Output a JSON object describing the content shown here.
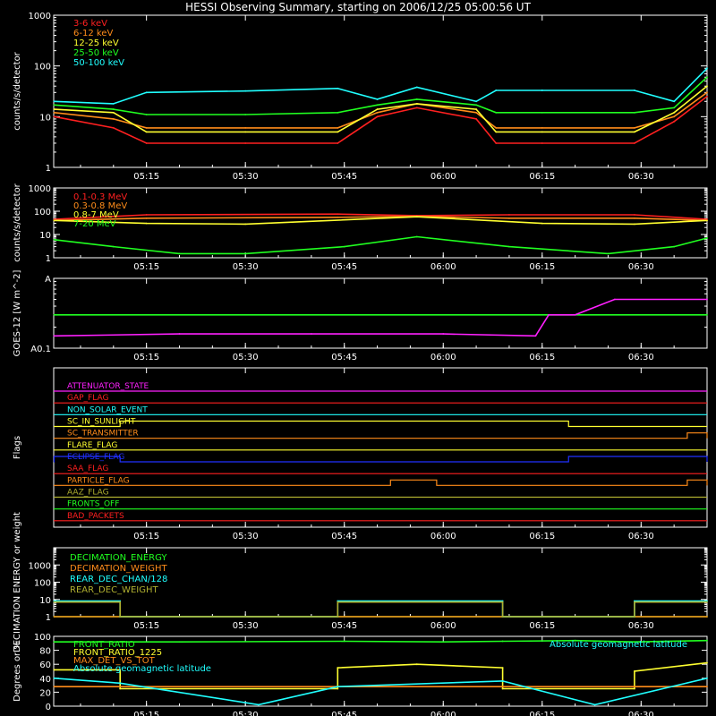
{
  "title": "HESSI Observing Summary, starting on 2006/12/25 05:00:56 UT",
  "colors": {
    "background": "#000000",
    "axis": "#ffffff",
    "red": "#ff2020",
    "orange": "#ff8c1a",
    "yellow": "#ffff30",
    "green": "#20ff20",
    "cyan": "#20ffff",
    "magenta": "#ff20ff",
    "blue": "#2030ff",
    "olive": "#b0b030"
  },
  "x_axis": {
    "start_utc": "05:00:56",
    "end_utc": "06:40",
    "tick_labels": [
      "05:15",
      "05:30",
      "05:45",
      "06:00",
      "06:15",
      "06:30"
    ],
    "tick_values": [
      "05:15",
      "05:30",
      "05:45",
      "06:00",
      "06:15",
      "06:30"
    ]
  },
  "chart_data": [
    {
      "type": "line",
      "ylabel": "counts/s/detector",
      "yscale": "log",
      "ylim": [
        1,
        1000
      ],
      "ytick_labels": [
        "1",
        "10",
        "100",
        "1000"
      ],
      "legend_placement": "top-left",
      "series": [
        {
          "name": "3-6 keV",
          "color": "red",
          "x": [
            "05:01",
            "05:10",
            "05:15",
            "05:30",
            "05:44",
            "05:50",
            "05:56",
            "06:05",
            "06:08",
            "06:15",
            "06:29",
            "06:35",
            "06:40"
          ],
          "y": [
            10,
            6,
            3,
            3,
            3,
            10,
            15,
            9,
            3,
            3,
            3,
            8,
            25
          ]
        },
        {
          "name": "6-12 keV",
          "color": "orange",
          "x": [
            "05:01",
            "05:10",
            "05:15",
            "05:30",
            "05:44",
            "05:50",
            "05:56",
            "06:05",
            "06:08",
            "06:15",
            "06:29",
            "06:35",
            "06:40"
          ],
          "y": [
            12,
            9,
            6,
            6,
            6,
            12,
            18,
            12,
            6,
            6,
            6,
            10,
            30
          ]
        },
        {
          "name": "12-25 keV",
          "color": "yellow",
          "x": [
            "05:01",
            "05:10",
            "05:15",
            "05:30",
            "05:44",
            "05:50",
            "05:56",
            "06:05",
            "06:08",
            "06:15",
            "06:29",
            "06:35",
            "06:40"
          ],
          "y": [
            14,
            12,
            5,
            5,
            5,
            14,
            18,
            14,
            5,
            5,
            5,
            12,
            40
          ]
        },
        {
          "name": "25-50 keV",
          "color": "green",
          "x": [
            "05:01",
            "05:10",
            "05:15",
            "05:30",
            "05:44",
            "05:50",
            "05:56",
            "06:05",
            "06:08",
            "06:15",
            "06:29",
            "06:35",
            "06:40"
          ],
          "y": [
            17,
            14,
            11,
            11,
            12,
            17,
            22,
            17,
            12,
            12,
            12,
            15,
            60
          ]
        },
        {
          "name": "50-100 keV",
          "color": "cyan",
          "x": [
            "05:01",
            "05:10",
            "05:15",
            "05:30",
            "05:44",
            "05:50",
            "05:56",
            "06:05",
            "06:08",
            "06:15",
            "06:29",
            "06:35",
            "06:40"
          ],
          "y": [
            20,
            18,
            30,
            32,
            36,
            22,
            38,
            20,
            33,
            33,
            33,
            20,
            90
          ]
        }
      ]
    },
    {
      "type": "line",
      "ylabel": "counts/s/detector",
      "yscale": "log",
      "ylim": [
        1,
        1000
      ],
      "ytick_labels": [
        "1",
        "10",
        "100",
        "1000"
      ],
      "legend_placement": "top-left",
      "series": [
        {
          "name": "0.1-0.3 MeV",
          "color": "red",
          "x": [
            "05:01",
            "05:15",
            "05:44",
            "05:56",
            "06:10",
            "06:29",
            "06:40"
          ],
          "y": [
            45,
            70,
            75,
            65,
            70,
            70,
            45
          ]
        },
        {
          "name": "0.3-0.8 MeV",
          "color": "orange",
          "x": [
            "05:01",
            "05:15",
            "05:44",
            "05:56",
            "06:10",
            "06:29",
            "06:40"
          ],
          "y": [
            40,
            50,
            55,
            60,
            50,
            50,
            40
          ]
        },
        {
          "name": "0.8-7 MeV",
          "color": "yellow",
          "x": [
            "05:01",
            "05:15",
            "05:30",
            "05:56",
            "06:15",
            "06:29",
            "06:40"
          ],
          "y": [
            40,
            30,
            28,
            58,
            30,
            28,
            40
          ]
        },
        {
          "name": "7-20 MeV",
          "color": "green",
          "x": [
            "05:01",
            "05:10",
            "05:20",
            "05:30",
            "05:45",
            "05:56",
            "06:10",
            "06:25",
            "06:35",
            "06:40"
          ],
          "y": [
            6,
            3,
            1.5,
            1.5,
            3,
            8,
            3,
            1.5,
            3,
            7
          ]
        }
      ]
    },
    {
      "type": "line",
      "ylabel": "GOES-12 [W m^-2]",
      "yscale": "log",
      "ylim": [
        1e-09,
        1e-08
      ],
      "ytick_labels": [
        "A0.1",
        "A"
      ],
      "series": [
        {
          "color": "green",
          "x": [
            "05:01",
            "06:40"
          ],
          "y": [
            3e-09,
            3e-09
          ]
        },
        {
          "color": "magenta",
          "x": [
            "05:01",
            "05:20",
            "05:40",
            "06:00",
            "06:14",
            "06:16",
            "06:20",
            "06:26",
            "06:40"
          ],
          "y": [
            1.5e-09,
            1.6e-09,
            1.6e-09,
            1.6e-09,
            1.5e-09,
            3e-09,
            3e-09,
            5e-09,
            5e-09
          ]
        }
      ]
    },
    {
      "type": "line",
      "ylabel": "Flags",
      "flags": [
        {
          "name": "ATTENUATOR_STATE",
          "color": "magenta",
          "intervals": []
        },
        {
          "name": "GAP_FLAG",
          "color": "red",
          "intervals": []
        },
        {
          "name": "NON_SOLAR_EVENT",
          "color": "cyan",
          "intervals": []
        },
        {
          "name": "SC_IN_SUNLIGHT",
          "color": "yellow",
          "intervals": [
            [
              "05:11",
              "06:19"
            ]
          ]
        },
        {
          "name": "SC_TRANSMITTER",
          "color": "orange",
          "intervals": [
            [
              "06:37",
              "06:40"
            ]
          ]
        },
        {
          "name": "FLARE_FLAG",
          "color": "yellow",
          "intervals": []
        },
        {
          "name": "ECLIPSE_FLAG",
          "color": "blue",
          "intervals": [
            [
              "05:01",
              "05:11"
            ],
            [
              "06:19",
              "06:40"
            ]
          ]
        },
        {
          "name": "SAA_FLAG",
          "color": "red",
          "intervals": []
        },
        {
          "name": "PARTICLE_FLAG",
          "color": "orange",
          "intervals": [
            [
              "05:52",
              "05:59"
            ],
            [
              "06:37",
              "06:40"
            ]
          ]
        },
        {
          "name": "AAZ_FLAG",
          "color": "olive",
          "intervals": []
        },
        {
          "name": "FRONTS_OFF",
          "color": "green",
          "intervals": []
        },
        {
          "name": "BAD_PACKETS",
          "color": "red",
          "intervals": []
        }
      ]
    },
    {
      "type": "line",
      "ylabel": "DECIMATION ENERGY or weight",
      "yscale": "log",
      "ylim": [
        1,
        10000
      ],
      "ytick_labels": [
        "1",
        "10",
        "100",
        "1000"
      ],
      "legend_placement": "top-left",
      "series": [
        {
          "name": "DECIMATION_ENERGY",
          "color": "green",
          "x": [
            "05:01",
            "06:40"
          ],
          "y": [
            1,
            1
          ]
        },
        {
          "name": "DECIMATION_WEIGHT",
          "color": "orange",
          "x": [
            "05:01",
            "06:40"
          ],
          "y": [
            1,
            1
          ]
        },
        {
          "name": "REAR_DEC_CHAN/128",
          "color": "cyan",
          "x": [
            "05:01",
            "05:11",
            "05:11",
            "05:44",
            "05:44",
            "06:09",
            "06:09",
            "06:29",
            "06:29",
            "06:40"
          ],
          "y": [
            8,
            8,
            1,
            1,
            8,
            8,
            1,
            1,
            8,
            8
          ]
        },
        {
          "name": "REAR_DEC_WEIGHT",
          "color": "olive",
          "x": [
            "05:01",
            "05:11",
            "05:11",
            "05:44",
            "05:44",
            "06:09",
            "06:09",
            "06:29",
            "06:29",
            "06:40"
          ],
          "y": [
            7,
            7,
            1,
            1,
            7,
            7,
            1,
            1,
            7,
            7
          ]
        }
      ]
    },
    {
      "type": "line",
      "ylabel": "Degrees or %",
      "ylim": [
        0,
        100
      ],
      "ytick_labels": [
        "0",
        "20",
        "40",
        "60",
        "80",
        "100"
      ],
      "legend_placement": "top-left",
      "annotation": "Absolute geomagnetic latitude",
      "series": [
        {
          "name": "FRONT_RATIO",
          "color": "green",
          "x": [
            "05:01",
            "05:20",
            "05:45",
            "06:00",
            "06:09",
            "06:20",
            "06:29",
            "06:40"
          ],
          "y": [
            92,
            92,
            93,
            92,
            93,
            94,
            92,
            94
          ]
        },
        {
          "name": "FRONT_RATIO_1225",
          "color": "yellow",
          "x": [
            "05:01",
            "05:11",
            "05:11",
            "05:44",
            "05:44",
            "05:56",
            "06:09",
            "06:09",
            "06:29",
            "06:29",
            "06:40"
          ],
          "y": [
            52,
            52,
            25,
            25,
            55,
            60,
            55,
            25,
            25,
            50,
            62
          ]
        },
        {
          "name": "MAX_DET_VS_TOT",
          "color": "orange",
          "x": [
            "05:01",
            "06:40"
          ],
          "y": [
            28,
            28
          ]
        },
        {
          "name": "Absolute geomagnetic latitude",
          "color": "cyan",
          "x": [
            "05:01",
            "05:11",
            "05:32",
            "05:44",
            "06:09",
            "06:23",
            "06:40"
          ],
          "y": [
            40,
            33,
            2,
            28,
            36,
            2,
            40
          ]
        }
      ]
    }
  ]
}
